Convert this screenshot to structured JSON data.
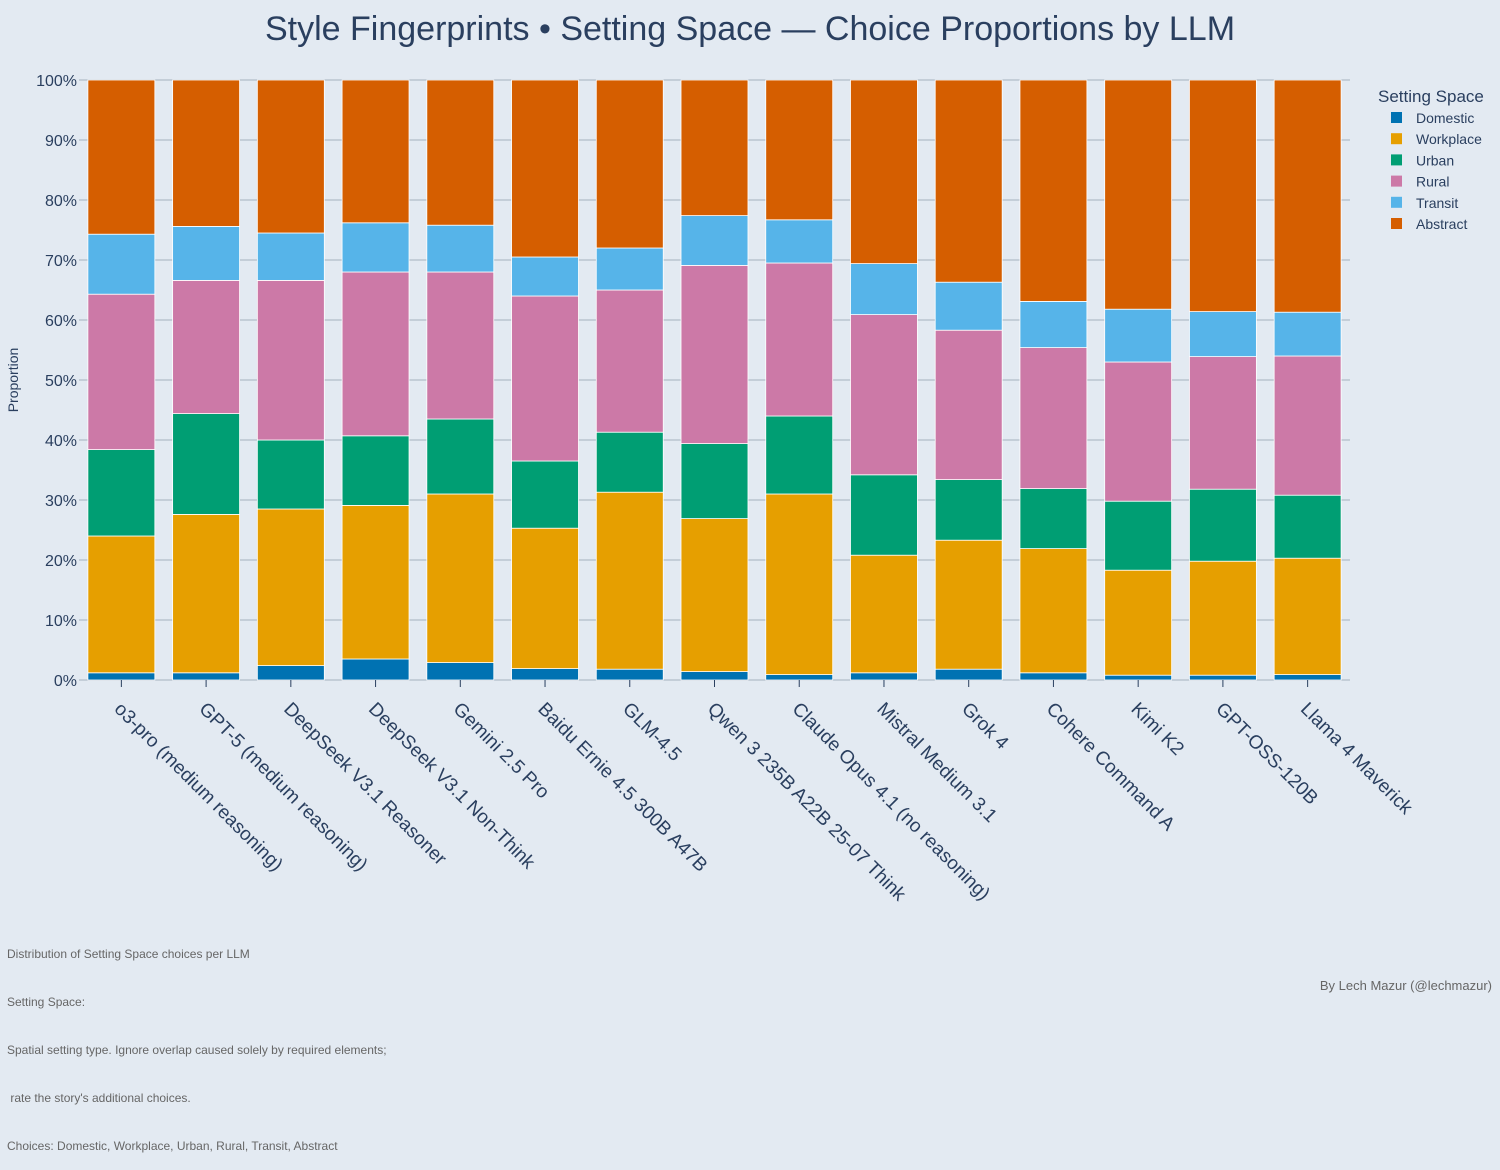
{
  "chart_data": {
    "type": "bar",
    "stacked": true,
    "normalized": true,
    "title": "Style Fingerprints • Setting Space — Choice Proportions by LLM",
    "ylabel": "Proportion",
    "xlabel": "",
    "ylim": [
      0,
      1
    ],
    "y_tick_labels": [
      "0%",
      "10%",
      "20%",
      "30%",
      "40%",
      "50%",
      "60%",
      "70%",
      "80%",
      "90%",
      "100%"
    ],
    "grid": "horizontal",
    "legend_title": "Setting Space",
    "legend_position": "top-right",
    "categories": [
      "o3-pro (medium reasoning)",
      "GPT-5 (medium reasoning)",
      "DeepSeek V3.1 Reasoner",
      "DeepSeek V3.1 Non-Think",
      "Gemini 2.5 Pro",
      "Baidu Ernie 4.5 300B A47B",
      "GLM-4.5",
      "Qwen 3 235B A22B 25-07 Think",
      "Claude Opus 4.1 (no reasoning)",
      "Mistral Medium 3.1",
      "Grok 4",
      "Cohere Command A",
      "Kimi K2",
      "GPT-OSS-120B",
      "Llama 4 Maverick"
    ],
    "series": [
      {
        "name": "Domestic",
        "color": "#0072b2",
        "values": [
          0.012,
          0.012,
          0.024,
          0.035,
          0.029,
          0.019,
          0.018,
          0.014,
          0.009,
          0.012,
          0.018,
          0.012,
          0.008,
          0.008,
          0.009
        ]
      },
      {
        "name": "Workplace",
        "color": "#e69f00",
        "values": [
          0.228,
          0.264,
          0.261,
          0.256,
          0.281,
          0.234,
          0.295,
          0.255,
          0.301,
          0.196,
          0.215,
          0.207,
          0.175,
          0.19,
          0.194
        ]
      },
      {
        "name": "Urban",
        "color": "#009e73",
        "values": [
          0.144,
          0.168,
          0.115,
          0.116,
          0.125,
          0.112,
          0.1,
          0.125,
          0.13,
          0.134,
          0.101,
          0.1,
          0.115,
          0.12,
          0.105
        ]
      },
      {
        "name": "Rural",
        "color": "#cc79a7",
        "values": [
          0.259,
          0.222,
          0.266,
          0.273,
          0.245,
          0.275,
          0.237,
          0.297,
          0.255,
          0.267,
          0.249,
          0.235,
          0.232,
          0.221,
          0.232
        ]
      },
      {
        "name": "Transit",
        "color": "#56b4e9",
        "values": [
          0.1,
          0.09,
          0.079,
          0.082,
          0.078,
          0.065,
          0.07,
          0.083,
          0.072,
          0.085,
          0.08,
          0.077,
          0.088,
          0.075,
          0.073
        ]
      },
      {
        "name": "Abstract",
        "color": "#d55e00",
        "values": [
          0.257,
          0.244,
          0.255,
          0.238,
          0.242,
          0.295,
          0.28,
          0.226,
          0.233,
          0.306,
          0.337,
          0.369,
          0.382,
          0.386,
          0.387
        ]
      }
    ]
  },
  "footnote": {
    "lines": [
      "Distribution of Setting Space choices per LLM",
      "Setting Space:",
      "Spatial setting type. Ignore overlap caused solely by required elements;",
      " rate the story's additional choices.",
      "Choices: Domestic, Workplace, Urban, Rural, Transit, Abstract"
    ]
  },
  "credit": "By Lech Mazur (@lechmazur)",
  "colors": {
    "background": "#e3eaf2",
    "grid": "#b9c4d0",
    "text": "#2a3f5f"
  }
}
